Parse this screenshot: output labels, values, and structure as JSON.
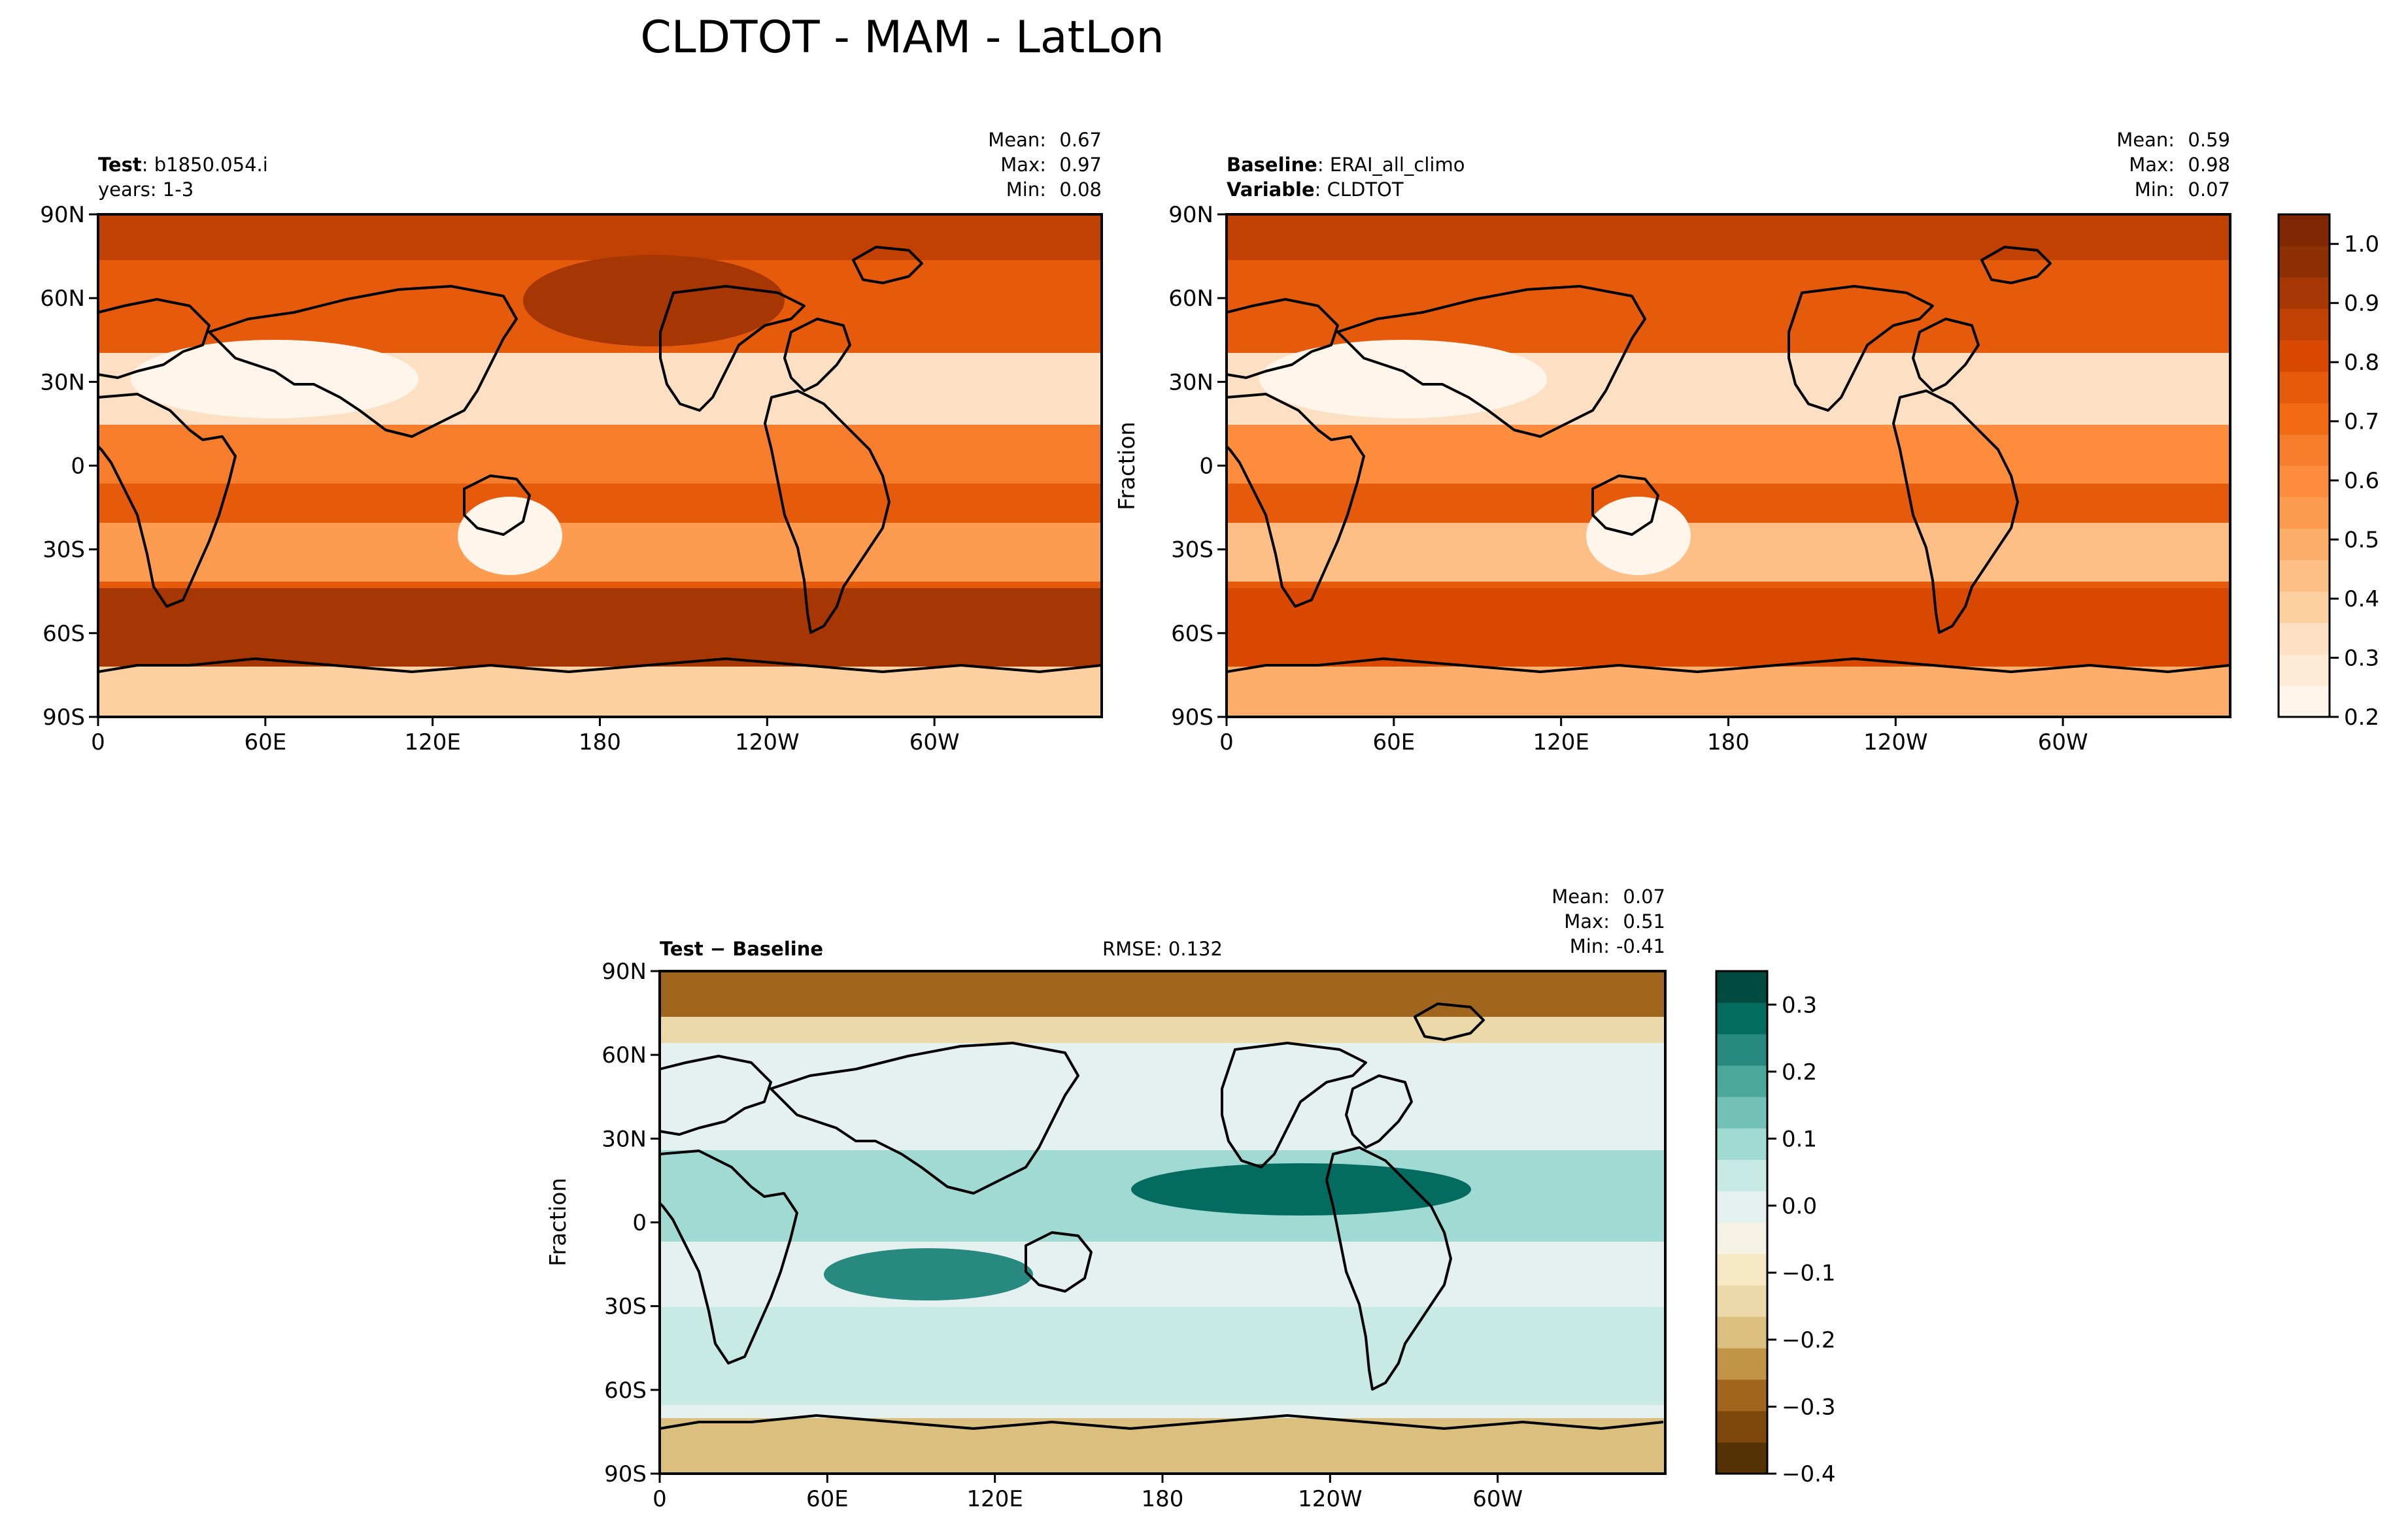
{
  "figure": {
    "title": "CLDTOT - MAM - LatLon"
  },
  "palettes": {
    "oranges": [
      "#fff5eb",
      "#feead5",
      "#fde0c3",
      "#fdd0a2",
      "#fdbf86",
      "#fdae6b",
      "#fd9c51",
      "#fd8d3c",
      "#f67d2c",
      "#f16913",
      "#e55a0b",
      "#d94801",
      "#c04102",
      "#a63603",
      "#8c3003",
      "#7f2704"
    ],
    "brbg": [
      "#543005",
      "#7e470b",
      "#a0661d",
      "#c29445",
      "#dbbf7f",
      "#ecd9a9",
      "#f6e8c3",
      "#f5f1e3",
      "#e4f1ef",
      "#c7eae5",
      "#a1dad2",
      "#74c2b7",
      "#4ca79b",
      "#27897f",
      "#036b5f",
      "#014a3f"
    ]
  },
  "chart_data": [
    {
      "type": "heatmap",
      "panel": "test",
      "label_bold": "Test",
      "label_value": "b1850.054.i",
      "label_line2": "years: 1-3",
      "stats": {
        "mean_label": "Mean:",
        "mean": "0.67",
        "max_label": "Max:",
        "max": "0.97",
        "min_label": "Min:",
        "min": "0.08"
      },
      "xticks": [
        "0",
        "60E",
        "120E",
        "180",
        "120W",
        "60W"
      ],
      "yticks": [
        "90N",
        "60N",
        "30N",
        "0",
        "30S",
        "60S",
        "90S"
      ],
      "xlim": [
        0,
        360
      ],
      "ylim": [
        -90,
        90
      ],
      "colormap": "oranges"
    },
    {
      "type": "heatmap",
      "panel": "baseline",
      "label_bold": "Baseline",
      "label_value": "ERAI_all_climo",
      "label2_bold": "Variable",
      "label2_value": "CLDTOT",
      "stats": {
        "mean_label": "Mean:",
        "mean": "0.59",
        "max_label": "Max:",
        "max": "0.98",
        "min_label": "Min:",
        "min": "0.07"
      },
      "xticks": [
        "0",
        "60E",
        "120E",
        "180",
        "120W",
        "60W"
      ],
      "yticks": [
        "90N",
        "60N",
        "30N",
        "0",
        "30S",
        "60S",
        "90S"
      ],
      "xlim": [
        0,
        360
      ],
      "ylim": [
        -90,
        90
      ],
      "colormap": "oranges",
      "colorbar": {
        "label": "Fraction",
        "ticks": [
          "1.0",
          "0.9",
          "0.8",
          "0.7",
          "0.6",
          "0.5",
          "0.4",
          "0.3",
          "0.2"
        ],
        "range": [
          0.2,
          1.05
        ]
      }
    },
    {
      "type": "heatmap",
      "panel": "diff",
      "label_bold": "Test − Baseline",
      "rmse": "RMSE: 0.132",
      "stats": {
        "mean_label": "Mean:",
        "mean": "0.07",
        "max_label": "Max:",
        "max": "0.51",
        "min_label": "Min:",
        "min": "-0.41"
      },
      "xticks": [
        "0",
        "60E",
        "120E",
        "180",
        "120W",
        "60W"
      ],
      "yticks": [
        "90N",
        "60N",
        "30N",
        "0",
        "30S",
        "60S",
        "90S"
      ],
      "xlim": [
        0,
        360
      ],
      "ylim": [
        -90,
        90
      ],
      "colormap": "brbg",
      "colorbar": {
        "label": "Fraction",
        "ticks": [
          "0.3",
          "0.2",
          "0.1",
          "0.0",
          "−0.1",
          "−0.2",
          "−0.3",
          "−0.4"
        ],
        "range": [
          -0.4,
          0.35
        ]
      }
    }
  ]
}
